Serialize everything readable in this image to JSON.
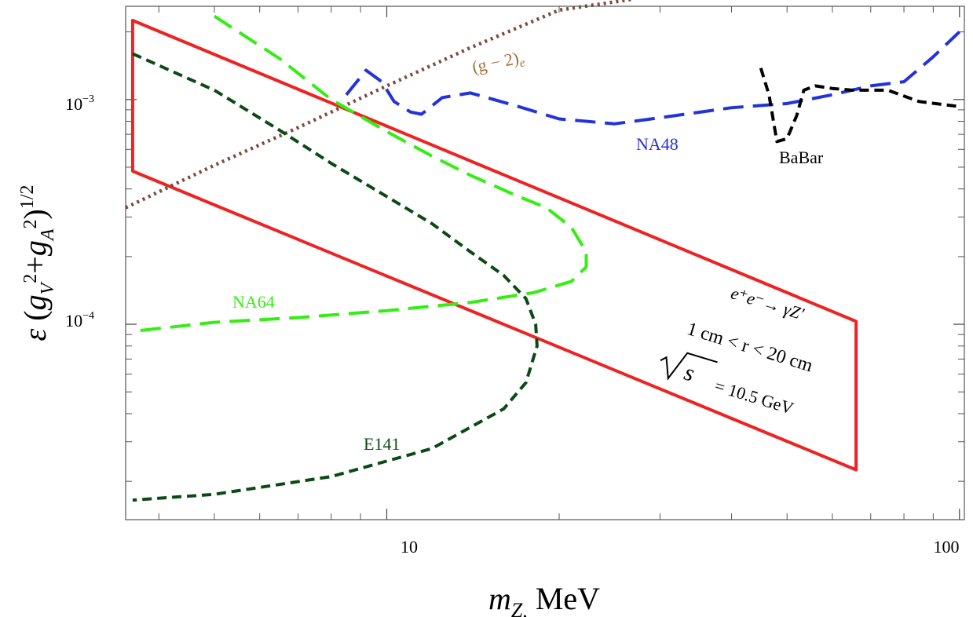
{
  "chart_data": {
    "type": "line",
    "x_scale": "log",
    "y_scale": "log",
    "xlim": [
      3.5,
      102
    ],
    "ylim": [
      1.35e-05,
      0.0026
    ],
    "xlabel": "m_Z, MeV",
    "ylabel": "ε (g_V²+g_A²)^1/2",
    "x_tick_labels": [
      {
        "value": 10,
        "label": "10"
      },
      {
        "value": 100,
        "label": "100"
      }
    ],
    "y_tick_labels": [
      {
        "value": 0.001,
        "label": "10",
        "exp": "−3"
      },
      {
        "value": 0.0001,
        "label": "10",
        "exp": "−4"
      }
    ],
    "series": [
      {
        "key": "region",
        "label": "",
        "color": "#ee2222",
        "style": "solid",
        "points": [
          [
            3.6,
            0.00225
          ],
          [
            66,
            0.000103
          ],
          [
            66,
            2.25e-05
          ],
          [
            3.6,
            0.00048
          ]
        ]
      },
      {
        "key": "g2e",
        "label": "(g − 2)",
        "label_sub": "e",
        "color": "#7a4a40",
        "label_color": "#a0703a",
        "style": "dotted",
        "points": [
          [
            3.5,
            0.00033
          ],
          [
            5,
            0.00051
          ],
          [
            7,
            0.00075
          ],
          [
            10,
            0.00115
          ],
          [
            14,
            0.0017
          ],
          [
            20,
            0.0025
          ],
          [
            27,
            0.0028
          ]
        ]
      },
      {
        "key": "na48",
        "label": "NA48",
        "color": "#2233dd",
        "style": "longdash",
        "points": [
          [
            8.5,
            0.00105
          ],
          [
            9.2,
            0.00135
          ],
          [
            9.8,
            0.0012
          ],
          [
            10.3,
            0.00098
          ],
          [
            11,
            0.00088
          ],
          [
            11.5,
            0.00086
          ],
          [
            12.5,
            0.00102
          ],
          [
            14,
            0.00107
          ],
          [
            17,
            0.00093
          ],
          [
            20,
            0.00082
          ],
          [
            25,
            0.00078
          ],
          [
            30,
            0.00083
          ],
          [
            40,
            0.00092
          ],
          [
            50,
            0.00096
          ],
          [
            60,
            0.00105
          ],
          [
            70,
            0.00115
          ],
          [
            80,
            0.0012
          ],
          [
            90,
            0.00155
          ],
          [
            100,
            0.002
          ]
        ]
      },
      {
        "key": "babar",
        "label": "BaBar",
        "color": "#000000",
        "style": "dashed",
        "points": [
          [
            45,
            0.00138
          ],
          [
            46.5,
            0.00105
          ],
          [
            48,
            0.00065
          ],
          [
            50,
            0.00067
          ],
          [
            52,
            0.00085
          ],
          [
            53.5,
            0.0011
          ],
          [
            56,
            0.00115
          ],
          [
            60,
            0.00112
          ],
          [
            65,
            0.0011
          ],
          [
            75,
            0.0011
          ],
          [
            85,
            0.00098
          ],
          [
            100,
            0.00093
          ]
        ]
      },
      {
        "key": "na64",
        "label": "NA64",
        "color": "#33ee11",
        "style": "longdash",
        "points": [
          [
            5,
            0.00235
          ],
          [
            6.5,
            0.00152
          ],
          [
            8,
            0.001
          ],
          [
            10,
            0.00072
          ],
          [
            12,
            0.00056
          ],
          [
            14,
            0.00046
          ],
          [
            17,
            0.00037
          ],
          [
            19,
            0.00033
          ],
          [
            21,
            0.00027
          ],
          [
            22.3,
            0.00021
          ],
          [
            22.3,
            0.00018
          ],
          [
            21,
            0.000155
          ],
          [
            18,
            0.000138
          ],
          [
            14,
            0.000125
          ],
          [
            10,
            0.000115
          ],
          [
            7,
            0.000107
          ],
          [
            5,
            0.000102
          ],
          [
            3.6,
            9.3e-05
          ]
        ]
      },
      {
        "key": "e141",
        "label": "E141",
        "color": "#0b4a14",
        "style": "dashed",
        "points": [
          [
            3.6,
            0.0016
          ],
          [
            5,
            0.0011
          ],
          [
            6.5,
            0.00073
          ],
          [
            8,
            0.00052
          ],
          [
            10,
            0.00037
          ],
          [
            12,
            0.00028
          ],
          [
            14,
            0.00021
          ],
          [
            16,
            0.000165
          ],
          [
            17.5,
            0.00013
          ],
          [
            18.2,
            0.0001
          ],
          [
            18.3,
            8e-05
          ],
          [
            17.5,
            5.5e-05
          ],
          [
            16,
            4.2e-05
          ],
          [
            12,
            2.8e-05
          ],
          [
            8,
            2.1e-05
          ],
          [
            5,
            1.75e-05
          ],
          [
            3.6,
            1.65e-05
          ]
        ]
      }
    ],
    "annotations": {
      "process": "e⁺e⁻→ γZ′",
      "radius": "1 cm < r < 20 cm",
      "energy_sqrt": "s",
      "energy_value": "= 10.5 GeV"
    }
  }
}
